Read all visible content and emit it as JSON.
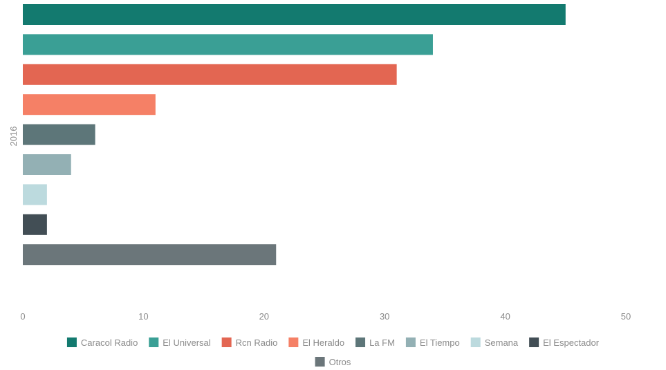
{
  "chart_data": {
    "type": "bar",
    "orientation": "horizontal",
    "category": "2016",
    "series": [
      {
        "name": "Caracol Radio",
        "value": 45,
        "color": "#137a6f"
      },
      {
        "name": "El Universal",
        "value": 34,
        "color": "#3a9f95"
      },
      {
        "name": "Rcn Radio",
        "value": 31,
        "color": "#e36652"
      },
      {
        "name": "El Heraldo",
        "value": 11,
        "color": "#f58066"
      },
      {
        "name": "La FM",
        "value": 6,
        "color": "#5d7679"
      },
      {
        "name": "El Tiempo",
        "value": 4,
        "color": "#93b0b4"
      },
      {
        "name": "Semana",
        "value": 2,
        "color": "#bcdade"
      },
      {
        "name": "El Espectador",
        "value": 2,
        "color": "#424e55"
      },
      {
        "name": "Otros",
        "value": 21,
        "color": "#6b767a"
      }
    ],
    "x_ticks": [
      0,
      10,
      20,
      30,
      40,
      50
    ],
    "xlim": [
      0,
      50
    ],
    "grid": false,
    "legend_position": "bottom"
  }
}
